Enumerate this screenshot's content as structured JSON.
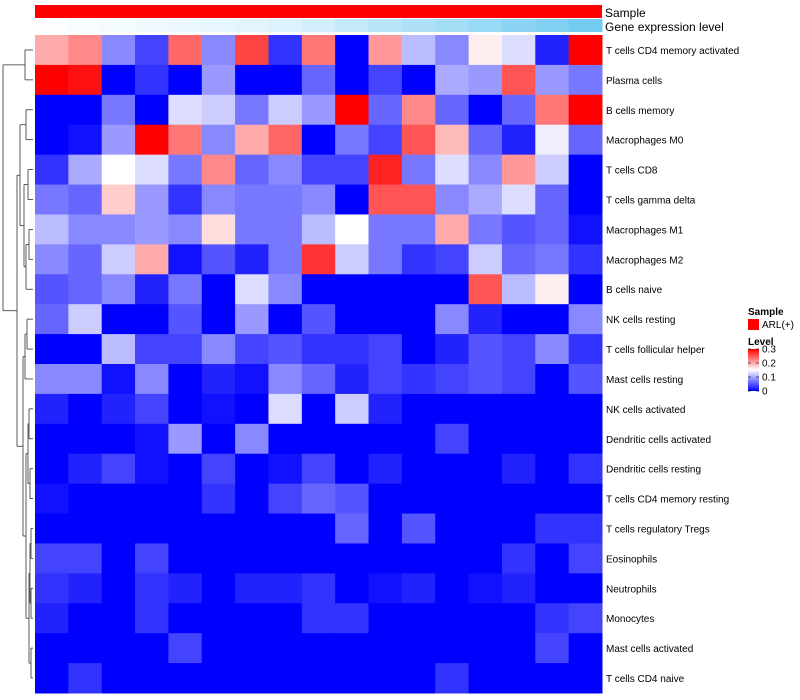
{
  "chart_data": {
    "type": "heatmap",
    "annotation_tracks": [
      {
        "label": "Sample",
        "color": "#FF0000",
        "gradient": false
      },
      {
        "label": "Gene expression level",
        "color_low": "#FFFFFF",
        "color_high": "#6CC8F0",
        "gradient": true
      }
    ],
    "rows": [
      "T cells CD4 memory activated",
      "Plasma cells",
      "B cells memory",
      "Macrophages M0",
      "T cells CD8",
      "T cells gamma delta",
      "Macrophages M1",
      "Macrophages M2",
      "B cells naive",
      "NK cells resting",
      "T cells follicular helper",
      "Mast cells resting",
      "NK cells activated",
      "Dendritic cells activated",
      "Dendritic cells resting",
      "T cells CD4 memory resting",
      "T cells regulatory  Tregs",
      "Eosinophils",
      "Neutrophils",
      "Monocytes",
      "Mast cells activated",
      "T cells CD4 naive"
    ],
    "values": [
      [
        0.2,
        0.22,
        0.08,
        0.04,
        0.24,
        0.08,
        0.26,
        0.03,
        0.23,
        0.0,
        0.21,
        0.11,
        0.08,
        0.16,
        0.13,
        0.02,
        0.3
      ],
      [
        0.3,
        0.29,
        0.0,
        0.03,
        0.0,
        0.09,
        0.0,
        0.0,
        0.06,
        0.0,
        0.04,
        0.0,
        0.1,
        0.09,
        0.25,
        0.09,
        0.07
      ],
      [
        0.0,
        0.0,
        0.07,
        0.0,
        0.13,
        0.12,
        0.07,
        0.12,
        0.09,
        0.3,
        0.06,
        0.22,
        0.06,
        0.0,
        0.06,
        0.23,
        0.3
      ],
      [
        0.0,
        0.01,
        0.09,
        0.3,
        0.23,
        0.08,
        0.2,
        0.24,
        0.0,
        0.07,
        0.04,
        0.25,
        0.19,
        0.06,
        0.02,
        0.14,
        0.06
      ],
      [
        0.03,
        0.1,
        0.15,
        0.13,
        0.07,
        0.22,
        0.06,
        0.08,
        0.04,
        0.04,
        0.28,
        0.07,
        0.13,
        0.08,
        0.21,
        0.12,
        0.0
      ],
      [
        0.07,
        0.06,
        0.18,
        0.09,
        0.03,
        0.08,
        0.07,
        0.07,
        0.08,
        0.0,
        0.25,
        0.25,
        0.08,
        0.1,
        0.13,
        0.06,
        0.0
      ],
      [
        0.11,
        0.08,
        0.08,
        0.09,
        0.08,
        0.17,
        0.07,
        0.07,
        0.11,
        0.15,
        0.07,
        0.07,
        0.2,
        0.07,
        0.05,
        0.06,
        0.01
      ],
      [
        0.08,
        0.06,
        0.12,
        0.2,
        0.01,
        0.05,
        0.02,
        0.07,
        0.27,
        0.12,
        0.07,
        0.03,
        0.04,
        0.12,
        0.06,
        0.07,
        0.03
      ],
      [
        0.05,
        0.06,
        0.08,
        0.02,
        0.07,
        0.0,
        0.13,
        0.08,
        0.0,
        0.0,
        0.0,
        0.0,
        0.0,
        0.25,
        0.11,
        0.16,
        0.0
      ],
      [
        0.06,
        0.12,
        0.0,
        0.0,
        0.05,
        0.0,
        0.09,
        0.0,
        0.05,
        0.0,
        0.0,
        0.0,
        0.08,
        0.02,
        0.0,
        0.0,
        0.08
      ],
      [
        0.0,
        0.0,
        0.11,
        0.04,
        0.04,
        0.08,
        0.04,
        0.05,
        0.03,
        0.03,
        0.04,
        0.0,
        0.02,
        0.05,
        0.04,
        0.08,
        0.03
      ],
      [
        0.08,
        0.08,
        0.01,
        0.08,
        0.0,
        0.02,
        0.01,
        0.08,
        0.06,
        0.02,
        0.04,
        0.03,
        0.04,
        0.05,
        0.04,
        0.0,
        0.05
      ],
      [
        0.02,
        0.0,
        0.02,
        0.04,
        0.0,
        0.01,
        0.0,
        0.13,
        0.0,
        0.12,
        0.02,
        0.0,
        0.0,
        0.0,
        0.0,
        0.0,
        0.0
      ],
      [
        0.0,
        0.0,
        0.0,
        0.01,
        0.09,
        0.0,
        0.08,
        0.0,
        0.0,
        0.0,
        0.0,
        0.0,
        0.04,
        0.0,
        0.0,
        0.0,
        0.0
      ],
      [
        0.0,
        0.02,
        0.04,
        0.01,
        0.0,
        0.04,
        0.0,
        0.01,
        0.04,
        0.0,
        0.02,
        0.0,
        0.0,
        0.0,
        0.02,
        0.0,
        0.03
      ],
      [
        0.01,
        0.0,
        0.0,
        0.0,
        0.0,
        0.03,
        0.0,
        0.04,
        0.06,
        0.05,
        0.0,
        0.0,
        0.0,
        0.0,
        0.0,
        0.0,
        0.0
      ],
      [
        0.0,
        0.0,
        0.0,
        0.0,
        0.0,
        0.0,
        0.0,
        0.0,
        0.0,
        0.06,
        0.0,
        0.05,
        0.0,
        0.0,
        0.0,
        0.03,
        0.03
      ],
      [
        0.04,
        0.04,
        0.0,
        0.04,
        0.0,
        0.0,
        0.0,
        0.0,
        0.0,
        0.0,
        0.0,
        0.0,
        0.0,
        0.0,
        0.03,
        0.0,
        0.04
      ],
      [
        0.03,
        0.02,
        0.0,
        0.03,
        0.02,
        0.0,
        0.02,
        0.02,
        0.03,
        0.0,
        0.01,
        0.02,
        0.0,
        0.01,
        0.02,
        0.0,
        0.0
      ],
      [
        0.02,
        0.0,
        0.0,
        0.03,
        0.0,
        0.0,
        0.0,
        0.0,
        0.03,
        0.03,
        0.0,
        0.0,
        0.0,
        0.0,
        0.0,
        0.03,
        0.04
      ],
      [
        0.0,
        0.0,
        0.0,
        0.0,
        0.04,
        0.0,
        0.0,
        0.0,
        0.0,
        0.0,
        0.0,
        0.0,
        0.0,
        0.0,
        0.0,
        0.04,
        0.0
      ],
      [
        0.0,
        0.03,
        0.0,
        0.0,
        0.0,
        0.0,
        0.0,
        0.0,
        0.0,
        0.0,
        0.0,
        0.0,
        0.03,
        0.0,
        0.0,
        0.0,
        0.0
      ]
    ],
    "gene_expression_level": [
      0.02,
      0.05,
      0.08,
      0.11,
      0.14,
      0.17,
      0.2,
      0.23,
      0.3,
      0.4,
      0.48,
      0.55,
      0.62,
      0.7,
      0.78,
      0.86,
      0.95
    ],
    "legend": {
      "sample_title": "Sample",
      "sample_label": "ARL(+)",
      "sample_color": "#FF0000",
      "level_title": "Level",
      "level_ticks": [
        "0.3",
        "0.2",
        "0.1",
        "0"
      ],
      "level_min": 0,
      "level_max": 0.3
    },
    "colors": {
      "low": "#0000FF",
      "mid": "#FFFFFF",
      "high": "#FF0000"
    },
    "row_dendrogram": true,
    "legend_position": "right"
  }
}
